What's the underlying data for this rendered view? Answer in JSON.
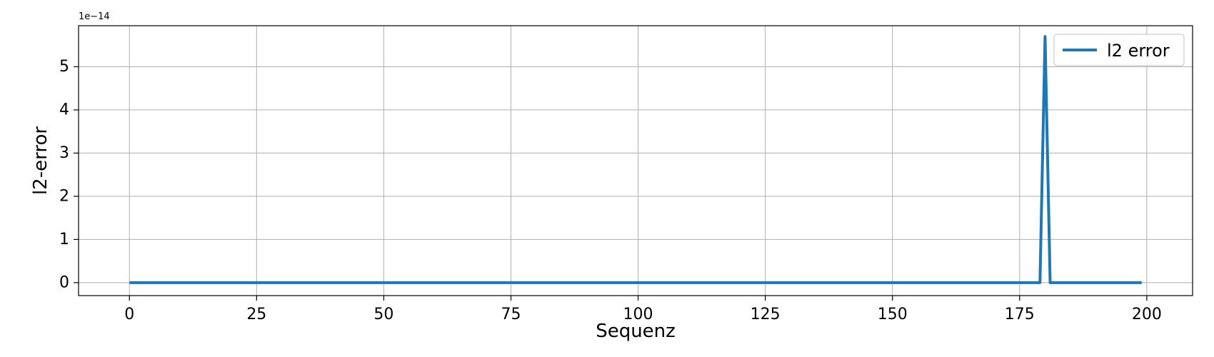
{
  "chart_data": {
    "type": "line",
    "xlabel": "Sequenz",
    "ylabel": "l2-error",
    "y_offset_label": "1e−14",
    "y_scale_factor": 1e-14,
    "xlim": [
      -10,
      209
    ],
    "ylim": [
      -0.3,
      5.95
    ],
    "xticks": [
      0,
      25,
      50,
      75,
      100,
      125,
      150,
      175,
      200
    ],
    "yticks": [
      0,
      1,
      2,
      3,
      4,
      5
    ],
    "grid": true,
    "legend_position": "top-right",
    "series": [
      {
        "name": "l2 error",
        "color": "#1f77b4",
        "x": [
          0,
          179,
          180,
          181,
          199
        ],
        "y": [
          0,
          0,
          5.7,
          0,
          0
        ]
      }
    ]
  }
}
